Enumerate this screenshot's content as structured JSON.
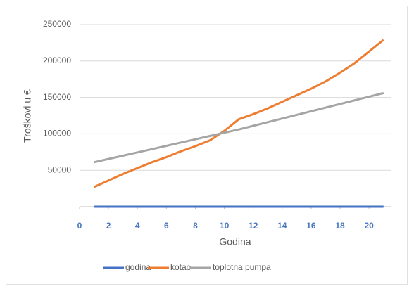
{
  "chart_data": {
    "type": "line",
    "y_label": "Troškovi u €",
    "x_label": "Godina",
    "x": [
      1,
      2,
      3,
      4,
      5,
      6,
      7,
      8,
      9,
      10,
      11,
      12,
      13,
      14,
      15,
      16,
      17,
      18,
      19,
      20,
      21
    ],
    "series": [
      {
        "name": "godina",
        "color": "#4472c4",
        "values": [
          1,
          2,
          3,
          4,
          5,
          6,
          7,
          8,
          9,
          10,
          11,
          12,
          13,
          14,
          15,
          16,
          17,
          18,
          19,
          20,
          21
        ]
      },
      {
        "name": "kotao",
        "color": "#ed7d31",
        "values": [
          27000,
          36000,
          45000,
          53000,
          61000,
          68000,
          76000,
          83000,
          91000,
          104000,
          120000,
          127000,
          135000,
          144000,
          153000,
          162000,
          172000,
          184000,
          197000,
          213000,
          229000
        ]
      },
      {
        "name": "toplotna pumpa",
        "color": "#a5a5a5",
        "values": [
          61000,
          65500,
          70000,
          74500,
          79000,
          83500,
          88000,
          92500,
          97000,
          101500,
          106000,
          111000,
          116000,
          121000,
          126000,
          131000,
          136000,
          141000,
          146000,
          151000,
          156000
        ]
      }
    ],
    "xlim": [
      0,
      21.5
    ],
    "xticks": [
      0,
      2,
      4,
      6,
      8,
      10,
      12,
      14,
      16,
      18,
      20
    ],
    "ylim": [
      0,
      250000
    ],
    "yticks": [
      50000,
      100000,
      150000,
      200000,
      250000
    ],
    "grid": true,
    "legend": "bottom",
    "xtick_color": "#4a78c0"
  }
}
